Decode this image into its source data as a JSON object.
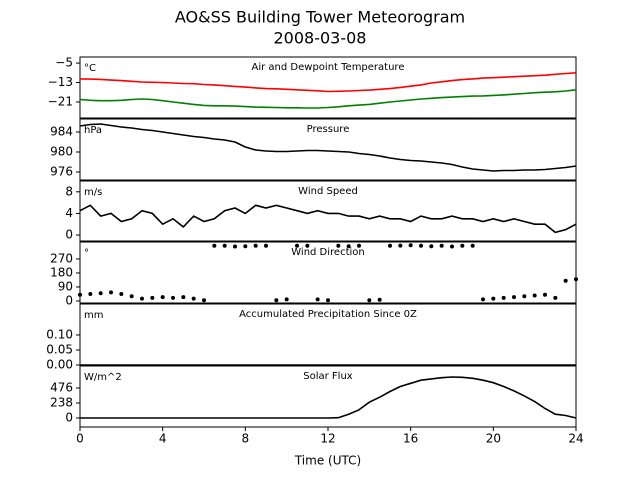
{
  "title": "AO&SS Building Tower Meteorogram",
  "subtitle": "2008-03-08",
  "x": [
    0,
    0.5,
    1,
    1.5,
    2,
    2.5,
    3,
    3.5,
    4,
    4.5,
    5,
    5.5,
    6,
    6.5,
    7,
    7.5,
    8,
    8.5,
    9,
    9.5,
    10,
    10.5,
    11,
    11.5,
    12,
    12.5,
    13,
    13.5,
    14,
    14.5,
    15,
    15.5,
    16,
    16.5,
    17,
    17.5,
    18,
    18.5,
    19,
    19.5,
    20,
    20.5,
    21,
    21.5,
    22,
    22.5,
    23,
    23.5,
    24
  ],
  "chart_data": [
    {
      "type": "line",
      "title": "Air and Dewpoint Temperature",
      "unit": "°C",
      "ylim": [
        -27.6,
        -2.5
      ],
      "yticks": [
        {
          "value": -5,
          "label": "−5"
        },
        {
          "value": -13,
          "label": "−13"
        },
        {
          "value": -21,
          "label": "−21"
        }
      ],
      "series": [
        {
          "color": "#ff0000",
          "values": [
            -11.5,
            -11.6,
            -11.7,
            -12.0,
            -12.2,
            -12.5,
            -12.8,
            -12.9,
            -13.0,
            -13.2,
            -13.4,
            -13.5,
            -13.8,
            -14.0,
            -14.3,
            -14.6,
            -14.9,
            -15.2,
            -15.5,
            -15.6,
            -15.8,
            -16.0,
            -16.2,
            -16.4,
            -16.7,
            -16.6,
            -16.5,
            -16.3,
            -16.1,
            -15.8,
            -15.5,
            -15.0,
            -14.5,
            -14.0,
            -13.2,
            -12.7,
            -12.2,
            -11.8,
            -11.5,
            -11.2,
            -11.0,
            -10.8,
            -10.6,
            -10.4,
            -10.2,
            -10.0,
            -9.6,
            -9.3,
            -9.0
          ]
        },
        {
          "color": "#008000",
          "values": [
            -20.0,
            -20.3,
            -20.5,
            -20.5,
            -20.3,
            -20.0,
            -19.8,
            -20.0,
            -20.5,
            -21.0,
            -21.5,
            -22.0,
            -22.4,
            -22.6,
            -22.6,
            -22.7,
            -22.9,
            -23.1,
            -23.2,
            -23.3,
            -23.4,
            -23.4,
            -23.5,
            -23.5,
            -23.3,
            -23.0,
            -22.6,
            -22.3,
            -22.0,
            -21.5,
            -21.0,
            -20.6,
            -20.2,
            -19.8,
            -19.5,
            -19.2,
            -19.0,
            -18.8,
            -18.6,
            -18.5,
            -18.3,
            -18.1,
            -17.8,
            -17.5,
            -17.2,
            -17.0,
            -16.8,
            -16.5,
            -16.0
          ]
        }
      ]
    },
    {
      "type": "line",
      "title": "Pressure",
      "unit": "hPa",
      "ylim": [
        974.4,
        986.6
      ],
      "yticks": [
        984,
        980,
        976
      ],
      "series": [
        {
          "color": "#000000",
          "values": [
            985.2,
            985.5,
            985.6,
            985.3,
            985.0,
            984.8,
            984.5,
            984.3,
            984.0,
            983.7,
            983.4,
            983.1,
            982.9,
            982.6,
            982.4,
            982.0,
            981.0,
            980.4,
            980.2,
            980.1,
            980.1,
            980.2,
            980.3,
            980.3,
            980.2,
            980.1,
            980.0,
            979.7,
            979.5,
            979.2,
            978.8,
            978.5,
            978.3,
            978.2,
            978.0,
            977.8,
            977.5,
            977.0,
            976.6,
            976.4,
            976.2,
            976.3,
            976.3,
            976.4,
            976.4,
            976.5,
            976.7,
            976.9,
            977.2
          ]
        }
      ]
    },
    {
      "type": "line",
      "title": "Wind Speed",
      "unit": "m/s",
      "ylim": [
        -1.1,
        10.0
      ],
      "yticks": [
        8,
        4,
        0
      ],
      "series": [
        {
          "color": "#000000",
          "values": [
            4.5,
            5.5,
            3.5,
            4.0,
            2.5,
            3.0,
            4.5,
            4.0,
            2.0,
            3.0,
            1.5,
            3.5,
            2.5,
            3.0,
            4.5,
            5.0,
            4.0,
            5.5,
            5.0,
            5.5,
            5.0,
            4.5,
            4.0,
            4.5,
            4.0,
            4.0,
            3.5,
            3.5,
            3.0,
            3.5,
            3.0,
            3.0,
            2.5,
            3.5,
            3.0,
            3.0,
            3.5,
            3.0,
            3.0,
            2.5,
            3.0,
            2.5,
            3.0,
            2.5,
            2.0,
            2.0,
            0.5,
            1.0,
            2.0
          ]
        }
      ]
    },
    {
      "type": "scatter",
      "title": "Wind Direction",
      "unit": "°",
      "ylim": [
        -13,
        379
      ],
      "yticks": [
        270,
        180,
        90,
        0
      ],
      "series": [
        {
          "color": "#000000",
          "values": [
            40,
            45,
            50,
            55,
            45,
            30,
            15,
            20,
            25,
            20,
            25,
            15,
            5,
            355,
            355,
            350,
            352,
            355,
            355,
            5,
            10,
            355,
            355,
            10,
            5,
            355,
            352,
            355,
            5,
            8,
            355,
            356,
            358,
            355,
            352,
            355,
            350,
            355,
            355,
            10,
            15,
            20,
            25,
            30,
            35,
            40,
            20,
            130,
            140
          ]
        }
      ]
    },
    {
      "type": "line",
      "title": "Accumulated Precipitation Since 0Z",
      "unit": "mm",
      "ylim": [
        0,
        0.203
      ],
      "yticks": [
        {
          "value": 0.1,
          "label": "0.10"
        },
        0.05,
        {
          "value": 0,
          "label": "0.00"
        }
      ],
      "series": [
        {
          "color": "#000000",
          "values": [
            0,
            0,
            0,
            0,
            0,
            0,
            0,
            0,
            0,
            0,
            0,
            0,
            0,
            0,
            0,
            0,
            0,
            0,
            0,
            0,
            0,
            0,
            0,
            0,
            0,
            0,
            0,
            0,
            0,
            0,
            0,
            0,
            0,
            0,
            0,
            0,
            0,
            0,
            0,
            0,
            0,
            0,
            0,
            0,
            0,
            0,
            0,
            0,
            0
          ]
        }
      ]
    },
    {
      "type": "line",
      "title": "Solar Flux",
      "unit": "W/m^2",
      "ylim": [
        -143,
        825
      ],
      "yticks": [
        476,
        238,
        0
      ],
      "xlim": [
        0,
        24
      ],
      "xticks": [
        0,
        4,
        8,
        12,
        16,
        20,
        24
      ],
      "xlabel": "Time (UTC)",
      "series": [
        {
          "color": "#000000",
          "values": [
            0,
            0,
            0,
            0,
            0,
            0,
            0,
            0,
            0,
            0,
            0,
            0,
            0,
            0,
            0,
            0,
            0,
            0,
            0,
            0,
            0,
            0,
            0,
            0,
            0,
            5,
            60,
            130,
            250,
            330,
            420,
            500,
            550,
            600,
            620,
            640,
            650,
            645,
            630,
            600,
            560,
            500,
            430,
            350,
            260,
            150,
            60,
            40,
            0
          ]
        }
      ]
    }
  ]
}
